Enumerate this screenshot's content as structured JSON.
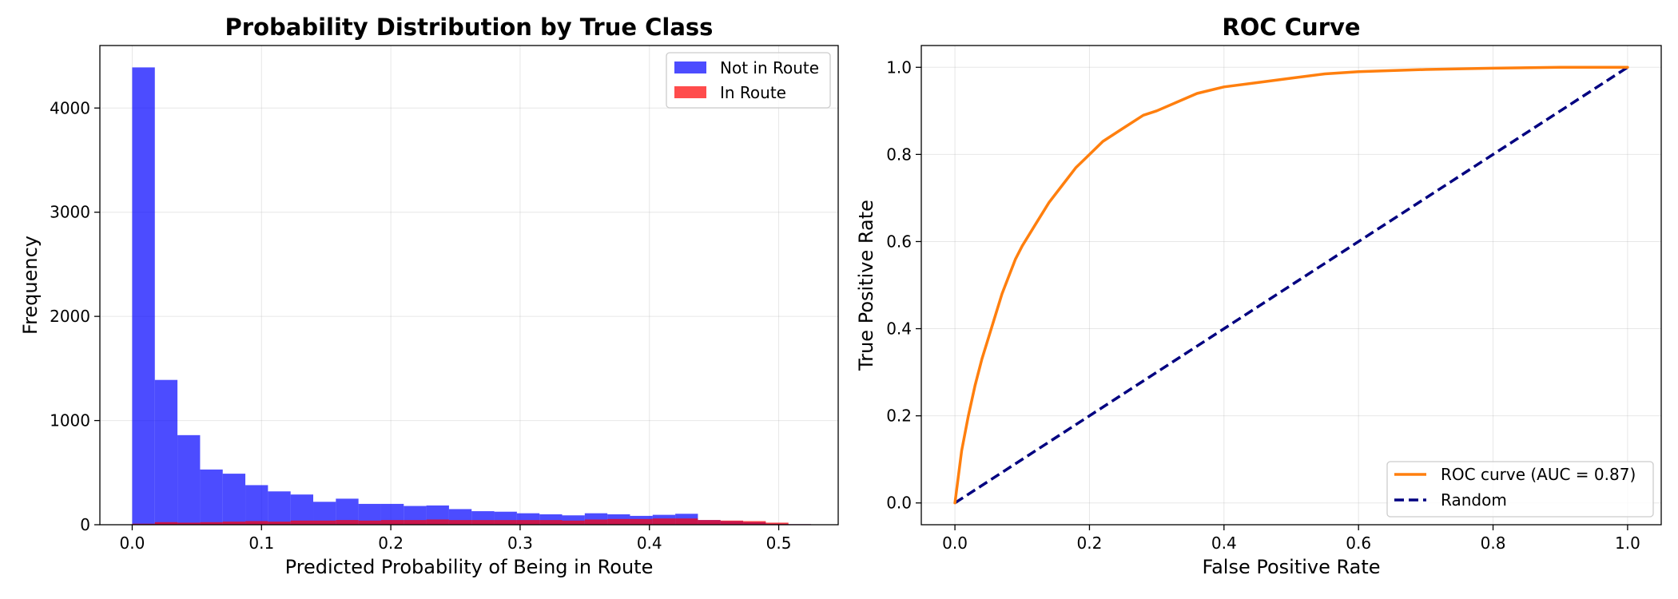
{
  "chart_data": [
    {
      "type": "bar",
      "subtype": "histogram",
      "title": "Probability Distribution by True Class",
      "xlabel": "Predicted Probability of Being in Route",
      "ylabel": "Frequency",
      "xlim": [
        -0.025,
        0.546
      ],
      "ylim": [
        0,
        4600
      ],
      "xticks": [
        0.0,
        0.1,
        0.2,
        0.3,
        0.4,
        0.5
      ],
      "xtick_labels": [
        "0.0",
        "0.1",
        "0.2",
        "0.3",
        "0.4",
        "0.5"
      ],
      "yticks": [
        0,
        1000,
        2000,
        3000,
        4000
      ],
      "ytick_labels": [
        "0",
        "1000",
        "2000",
        "3000",
        "4000"
      ],
      "grid": true,
      "legend_position": "top-right",
      "bin_edges": [
        0.0,
        0.0175,
        0.035,
        0.0525,
        0.07,
        0.0875,
        0.105,
        0.1225,
        0.14,
        0.1575,
        0.175,
        0.1925,
        0.21,
        0.2275,
        0.245,
        0.2625,
        0.28,
        0.2975,
        0.315,
        0.3325,
        0.35,
        0.3675,
        0.385,
        0.4025,
        0.42,
        0.4375,
        0.455,
        0.4725,
        0.49,
        0.5075,
        0.525
      ],
      "series": [
        {
          "name": "Not in Route",
          "color": "#0000ff",
          "alpha": 0.7,
          "values": [
            4390,
            1390,
            860,
            530,
            490,
            380,
            320,
            290,
            220,
            250,
            200,
            200,
            180,
            185,
            150,
            130,
            125,
            110,
            100,
            90,
            110,
            100,
            85,
            95,
            105,
            45,
            35,
            25,
            10,
            5
          ]
        },
        {
          "name": "In Route",
          "color": "#ff0000",
          "alpha": 0.7,
          "values": [
            10,
            25,
            20,
            25,
            30,
            35,
            30,
            40,
            40,
            45,
            40,
            45,
            45,
            50,
            45,
            45,
            45,
            45,
            45,
            40,
            50,
            55,
            55,
            60,
            60,
            45,
            40,
            35,
            20,
            5
          ]
        }
      ]
    },
    {
      "type": "line",
      "title": "ROC Curve",
      "xlabel": "False Positive Rate",
      "ylabel": "True Positive Rate",
      "xlim": [
        -0.05,
        1.05
      ],
      "ylim": [
        -0.05,
        1.05
      ],
      "xticks": [
        0.0,
        0.2,
        0.4,
        0.6,
        0.8,
        1.0
      ],
      "xtick_labels": [
        "0.0",
        "0.2",
        "0.4",
        "0.6",
        "0.8",
        "1.0"
      ],
      "yticks": [
        0.0,
        0.2,
        0.4,
        0.6,
        0.8,
        1.0
      ],
      "ytick_labels": [
        "0.0",
        "0.2",
        "0.4",
        "0.6",
        "0.8",
        "1.0"
      ],
      "grid": true,
      "legend_position": "bottom-right",
      "series": [
        {
          "name": "ROC curve (AUC = 0.87)",
          "color": "#ff7f0e",
          "style": "solid",
          "x": [
            0.0,
            0.005,
            0.01,
            0.02,
            0.03,
            0.04,
            0.05,
            0.06,
            0.07,
            0.08,
            0.09,
            0.1,
            0.12,
            0.14,
            0.16,
            0.18,
            0.2,
            0.22,
            0.25,
            0.28,
            0.3,
            0.33,
            0.36,
            0.4,
            0.45,
            0.5,
            0.55,
            0.6,
            0.7,
            0.8,
            0.9,
            1.0
          ],
          "y": [
            0.0,
            0.06,
            0.12,
            0.2,
            0.27,
            0.33,
            0.38,
            0.43,
            0.48,
            0.52,
            0.56,
            0.59,
            0.64,
            0.69,
            0.73,
            0.77,
            0.8,
            0.83,
            0.86,
            0.89,
            0.9,
            0.92,
            0.94,
            0.955,
            0.965,
            0.975,
            0.985,
            0.99,
            0.995,
            0.998,
            1.0,
            1.0
          ]
        },
        {
          "name": "Random",
          "color": "#000080",
          "style": "dashed",
          "x": [
            0.0,
            1.0
          ],
          "y": [
            0.0,
            1.0
          ]
        }
      ]
    }
  ]
}
